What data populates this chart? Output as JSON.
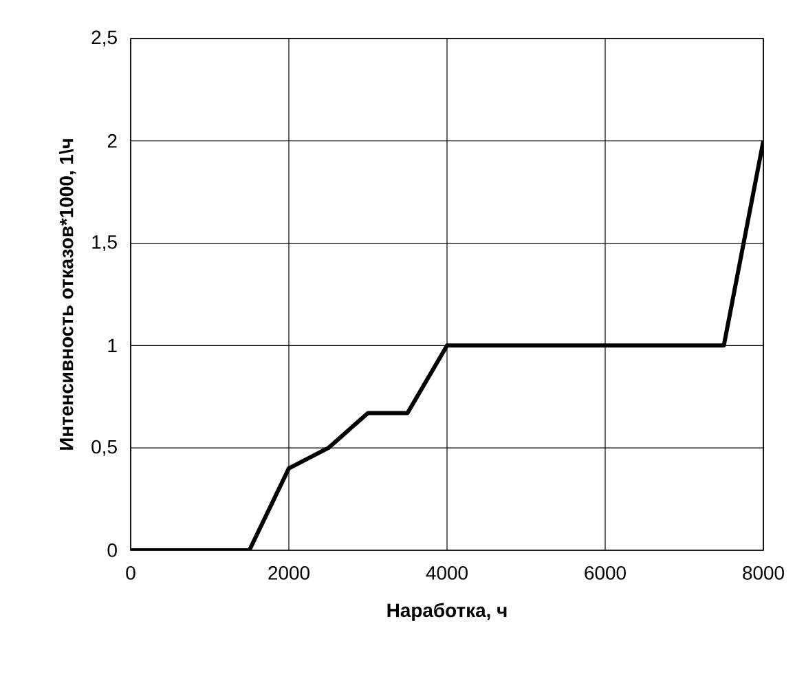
{
  "chart_data": {
    "type": "line",
    "xlabel": "Наработка, ч",
    "ylabel": "Интенсивность отказов*1000, 1\\ч",
    "x": [
      0,
      1500,
      2000,
      2500,
      3000,
      3500,
      4000,
      7500,
      8000
    ],
    "series": [
      {
        "color": "#000000",
        "values": [
          0,
          0,
          0.4,
          0.5,
          0.67,
          0.67,
          1,
          1,
          2
        ]
      }
    ],
    "xlim": [
      0,
      8000
    ],
    "xticks": [
      0,
      2000,
      4000,
      6000,
      8000
    ],
    "ylim": [
      0,
      2.5
    ],
    "yticks": [
      0,
      {
        "value": 0.5,
        "label": "0,5"
      },
      1,
      {
        "value": 1.5,
        "label": "1,5"
      },
      2,
      {
        "value": 2.5,
        "label": "2,5"
      }
    ],
    "grid": true,
    "legend": false,
    "marker": "none",
    "line_style": "solid"
  }
}
